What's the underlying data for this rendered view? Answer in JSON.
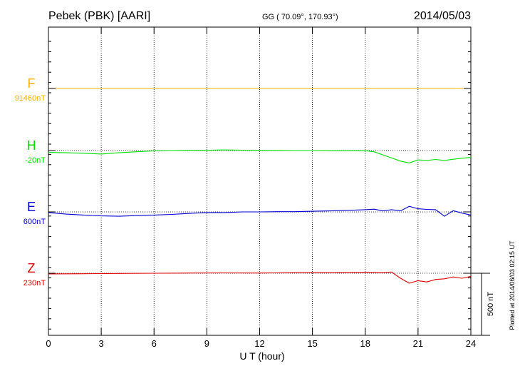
{
  "header": {
    "station": "Pebek (PBK)  [AARI]",
    "coords": "GG ( 70.09°, 170.93°)",
    "date": "2014/05/03"
  },
  "footer": {
    "plotted_note": "Plotted at 2014/06/03 02:15 UT",
    "scale_label": "500 nT"
  },
  "chart_data": {
    "type": "line",
    "xlabel": "U T (hour)",
    "xlim": [
      0,
      24
    ],
    "xticks": [
      0,
      3,
      6,
      9,
      12,
      15,
      18,
      21,
      24
    ],
    "scale_bar_nT": 500,
    "grid": true,
    "series": [
      {
        "name": "F",
        "baseline_label": "91460nT",
        "color": "#ffb000",
        "points": [
          [
            0,
            0
          ],
          [
            3,
            0
          ],
          [
            6,
            0
          ],
          [
            9,
            0
          ],
          [
            12,
            0
          ],
          [
            15,
            0
          ],
          [
            18,
            0
          ],
          [
            21,
            0
          ],
          [
            24,
            0
          ]
        ]
      },
      {
        "name": "H",
        "baseline_label": "-20nT",
        "color": "#00e000",
        "points": [
          [
            0,
            -15
          ],
          [
            1,
            -18
          ],
          [
            2,
            -22
          ],
          [
            3,
            -28
          ],
          [
            4,
            -18
          ],
          [
            5,
            -10
          ],
          [
            6,
            -3
          ],
          [
            7,
            0
          ],
          [
            8,
            2
          ],
          [
            9,
            2
          ],
          [
            10,
            5
          ],
          [
            11,
            3
          ],
          [
            12,
            2
          ],
          [
            13,
            1
          ],
          [
            14,
            0
          ],
          [
            15,
            0
          ],
          [
            16,
            -1
          ],
          [
            17,
            -2
          ],
          [
            18,
            -2
          ],
          [
            18.5,
            -10
          ],
          [
            19,
            -35
          ],
          [
            19.5,
            -60
          ],
          [
            20,
            -85
          ],
          [
            20.5,
            -100
          ],
          [
            21,
            -75
          ],
          [
            21.5,
            -80
          ],
          [
            22,
            -72
          ],
          [
            22.5,
            -80
          ],
          [
            23,
            -70
          ],
          [
            23.5,
            -62
          ],
          [
            24,
            -55
          ]
        ]
      },
      {
        "name": "E",
        "baseline_label": "600nT",
        "color": "#0000d0",
        "points": [
          [
            0,
            -5
          ],
          [
            1,
            -18
          ],
          [
            2,
            -25
          ],
          [
            3,
            -32
          ],
          [
            4,
            -35
          ],
          [
            5,
            -30
          ],
          [
            6,
            -25
          ],
          [
            7,
            -20
          ],
          [
            8,
            -12
          ],
          [
            9,
            -5
          ],
          [
            10,
            -5
          ],
          [
            11,
            0
          ],
          [
            12,
            0
          ],
          [
            13,
            2
          ],
          [
            14,
            2
          ],
          [
            15,
            5
          ],
          [
            16,
            8
          ],
          [
            17,
            12
          ],
          [
            18,
            18
          ],
          [
            18.5,
            22
          ],
          [
            19,
            8
          ],
          [
            19.5,
            18
          ],
          [
            20,
            8
          ],
          [
            20.5,
            45
          ],
          [
            21,
            25
          ],
          [
            21.5,
            20
          ],
          [
            22,
            18
          ],
          [
            22.5,
            -35
          ],
          [
            23,
            10
          ],
          [
            23.5,
            -10
          ],
          [
            24,
            -25
          ]
        ]
      },
      {
        "name": "Z",
        "baseline_label": "230nT",
        "color": "#e00000",
        "points": [
          [
            0,
            -5
          ],
          [
            2,
            -4
          ],
          [
            4,
            -2
          ],
          [
            6,
            0
          ],
          [
            8,
            2
          ],
          [
            10,
            3
          ],
          [
            12,
            2
          ],
          [
            14,
            5
          ],
          [
            16,
            5
          ],
          [
            18,
            8
          ],
          [
            19,
            5
          ],
          [
            19.5,
            10
          ],
          [
            20,
            -40
          ],
          [
            20.5,
            -80
          ],
          [
            21,
            -60
          ],
          [
            21.5,
            -70
          ],
          [
            22,
            -50
          ],
          [
            22.5,
            -45
          ],
          [
            23,
            -30
          ],
          [
            23.5,
            -40
          ],
          [
            24,
            -25
          ]
        ]
      }
    ]
  }
}
